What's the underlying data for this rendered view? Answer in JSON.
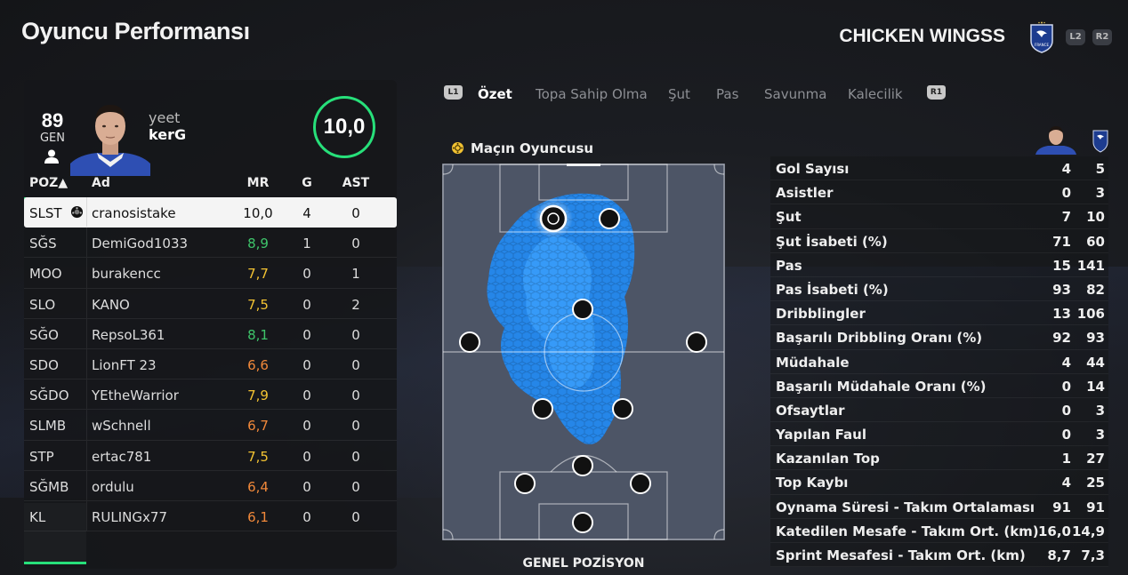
{
  "header": {
    "title": "Oyuncu Performansı",
    "team_name": "CHICKEN WINGSS",
    "btn_l2": "L2",
    "btn_r2": "R2",
    "crest_text": "FRANCE"
  },
  "player": {
    "overall": "89",
    "overall_label": "GEN",
    "name_line1": "yeet",
    "name_line2": "kerG",
    "rating": "10,0"
  },
  "table": {
    "headers": {
      "poz": "POZ▲",
      "ad": "Ad",
      "mr": "MR",
      "g": "G",
      "ast": "AST"
    },
    "rows": [
      {
        "poz": "SLST",
        "ad": "cranosistake",
        "mr": "10,0",
        "g": "4",
        "ast": "0",
        "mr_color": "#111111"
      },
      {
        "poz": "SĞS",
        "ad": "DemiGod1033",
        "mr": "8,9",
        "g": "1",
        "ast": "0",
        "mr_color": "#3ec46a"
      },
      {
        "poz": "MOO",
        "ad": "burakencc",
        "mr": "7,7",
        "g": "0",
        "ast": "1",
        "mr_color": "#f2c232"
      },
      {
        "poz": "SLO",
        "ad": "KANO",
        "mr": "7,5",
        "g": "0",
        "ast": "2",
        "mr_color": "#f2c232"
      },
      {
        "poz": "SĞO",
        "ad": "RepsoL361",
        "mr": "8,1",
        "g": "0",
        "ast": "0",
        "mr_color": "#3ec46a"
      },
      {
        "poz": "SDO",
        "ad": "LionFT 23",
        "mr": "6,6",
        "g": "0",
        "ast": "0",
        "mr_color": "#f0883a"
      },
      {
        "poz": "SĞDO",
        "ad": "YEtheWarrior",
        "mr": "7,9",
        "g": "0",
        "ast": "0",
        "mr_color": "#f2c232"
      },
      {
        "poz": "SLMB",
        "ad": "wSchnell",
        "mr": "6,7",
        "g": "0",
        "ast": "0",
        "mr_color": "#f0883a"
      },
      {
        "poz": "STP",
        "ad": "ertac781",
        "mr": "7,5",
        "g": "0",
        "ast": "0",
        "mr_color": "#f2c232"
      },
      {
        "poz": "SĞMB",
        "ad": "ordulu",
        "mr": "6,4",
        "g": "0",
        "ast": "0",
        "mr_color": "#f0883a"
      },
      {
        "poz": "KL",
        "ad": "RULINGx77",
        "mr": "6,1",
        "g": "0",
        "ast": "0",
        "mr_color": "#f0883a"
      }
    ]
  },
  "tabs": {
    "l1": "L1",
    "r1": "R1",
    "items": [
      "Özet",
      "Topa Sahip Olma",
      "Şut",
      "Pas",
      "Savunma",
      "Kalecilik"
    ]
  },
  "pitch": {
    "motm_label": "Maçın Oyuncusu",
    "caption": "GENEL POZİSYON"
  },
  "stats": {
    "rows": [
      {
        "label": "Gol Sayısı",
        "player": "4",
        "team": "5"
      },
      {
        "label": "Asistler",
        "player": "0",
        "team": "3"
      },
      {
        "label": "Şut",
        "player": "7",
        "team": "10"
      },
      {
        "label": "Şut İsabeti (%)",
        "player": "71",
        "team": "60"
      },
      {
        "label": "Pas",
        "player": "15",
        "team": "141"
      },
      {
        "label": "Pas İsabeti (%)",
        "player": "93",
        "team": "82"
      },
      {
        "label": "Dribblingler",
        "player": "13",
        "team": "106"
      },
      {
        "label": "Başarılı Dribbling Oranı (%)",
        "player": "92",
        "team": "93"
      },
      {
        "label": "Müdahale",
        "player": "4",
        "team": "44"
      },
      {
        "label": "Başarılı Müdahale Oranı (%)",
        "player": "0",
        "team": "14"
      },
      {
        "label": "Ofsaytlar",
        "player": "0",
        "team": "3"
      },
      {
        "label": "Yapılan Faul",
        "player": "0",
        "team": "3"
      },
      {
        "label": "Kazanılan Top",
        "player": "1",
        "team": "27"
      },
      {
        "label": "Top Kaybı",
        "player": "4",
        "team": "25"
      },
      {
        "label": "Oynama Süresi - Takım Ortalaması",
        "player": "91",
        "team": "91"
      },
      {
        "label": "Katedilen Mesafe - Takım Ort. (km)",
        "player": "16,0",
        "team": "14,9"
      },
      {
        "label": "Sprint Mesafesi - Takım Ort. (km)",
        "player": "8,7",
        "team": "7,3"
      }
    ]
  },
  "colors": {
    "accent_green": "#27e07a",
    "heatmap_blue": "#1e8fff"
  }
}
